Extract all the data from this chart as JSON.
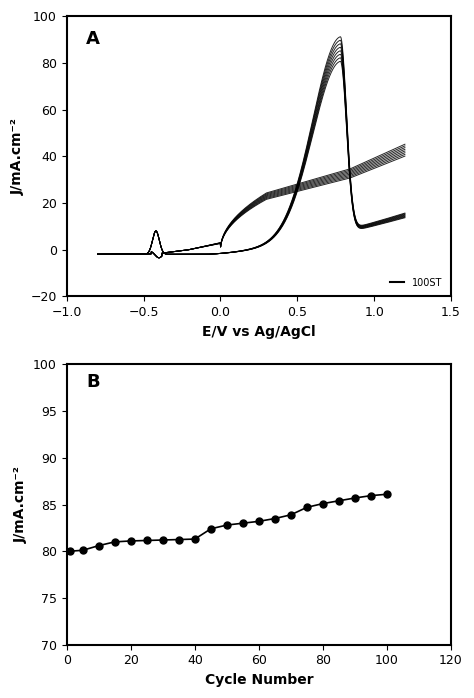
{
  "panel_A": {
    "label": "A",
    "xlabel": "E/V vs Ag/AgCl",
    "ylabel": "J/mA.cm⁻²",
    "xlim": [
      -1,
      1.5
    ],
    "ylim": [
      -20,
      100
    ],
    "xticks": [
      -1,
      -0.5,
      0,
      0.5,
      1,
      1.5
    ],
    "yticks": [
      -20,
      0,
      20,
      40,
      60,
      80,
      100
    ],
    "legend_label": "100ST",
    "line_color": "#000000"
  },
  "panel_B": {
    "label": "B",
    "xlabel": "Cycle Number",
    "ylabel": "J/mA.cm⁻²",
    "xlim": [
      0,
      120
    ],
    "ylim": [
      70,
      100
    ],
    "xticks": [
      0,
      20,
      40,
      60,
      80,
      100,
      120
    ],
    "yticks": [
      70,
      75,
      80,
      85,
      90,
      95,
      100
    ],
    "cycle_numbers": [
      1,
      5,
      10,
      15,
      20,
      25,
      30,
      35,
      40,
      45,
      50,
      55,
      60,
      65,
      70,
      75,
      80,
      85,
      90,
      95,
      100
    ],
    "peak_currents": [
      80.0,
      80.1,
      80.6,
      81.0,
      81.1,
      81.15,
      81.2,
      81.25,
      81.3,
      82.4,
      82.8,
      83.0,
      83.2,
      83.5,
      83.9,
      84.7,
      85.1,
      85.4,
      85.7,
      85.95,
      86.1
    ],
    "line_color": "#000000",
    "marker": "o",
    "markersize": 5
  }
}
